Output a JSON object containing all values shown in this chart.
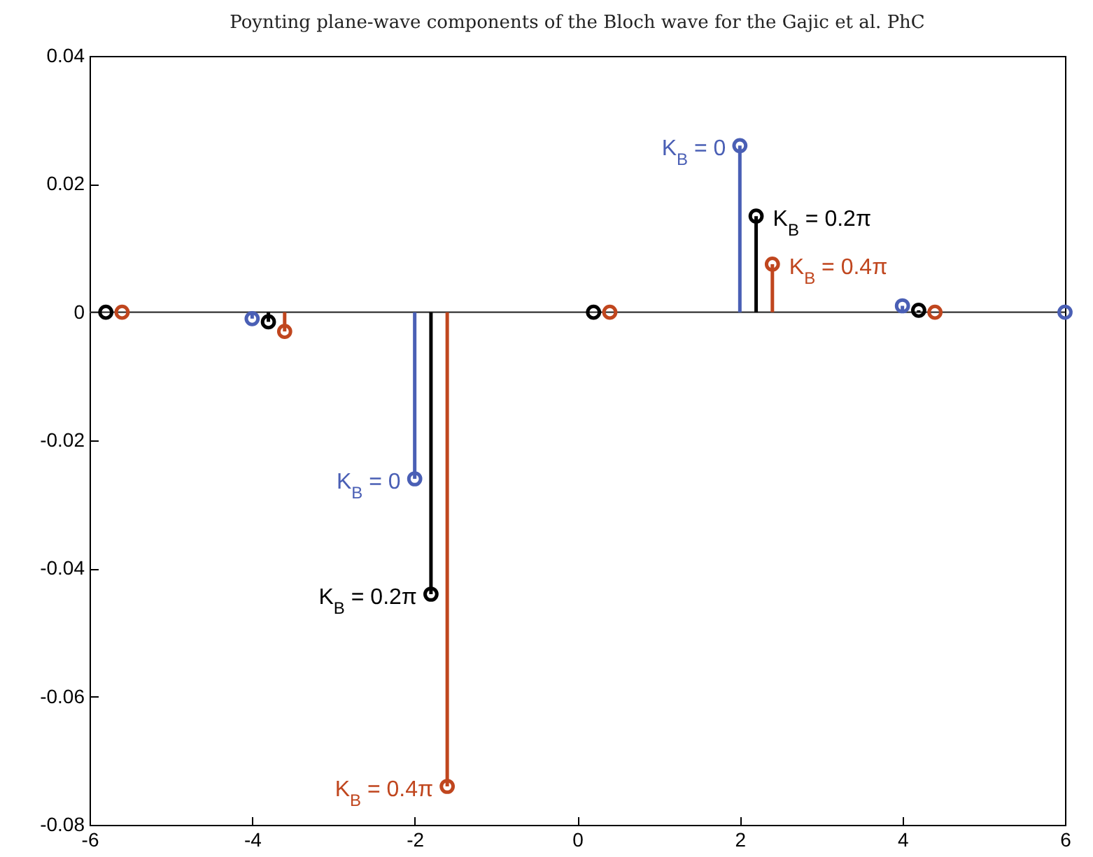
{
  "chart_data": {
    "type": "lollipop",
    "title": "Poynting plane-wave components of the Bloch wave for the Gajic et al. PhC",
    "series": [
      {
        "color": "#4a5fb5",
        "x": [
          -4,
          -2,
          2,
          4,
          6
        ],
        "values": [
          -0.001,
          -0.026,
          0.026,
          0.001,
          0
        ]
      },
      {
        "color": "#000000",
        "x": [
          -5.8,
          -3.8,
          -1.8,
          0.2,
          2.2,
          4.2
        ],
        "values": [
          0,
          -0.0015,
          -0.044,
          0,
          0.015,
          0.0003
        ]
      },
      {
        "color": "#c0461e",
        "x": [
          -5.6,
          -3.6,
          -1.6,
          0.4,
          2.4,
          4.4
        ],
        "values": [
          0,
          -0.003,
          -0.074,
          0,
          0.0075,
          0
        ]
      }
    ],
    "xlim": [
      -6,
      6
    ],
    "xticks": [
      -6,
      -4,
      -2,
      0,
      2,
      4,
      6
    ],
    "ylim": [
      -0.08,
      0.04
    ],
    "yticks": [
      -0.08,
      -0.06,
      -0.04,
      -0.02,
      0,
      0.02,
      0.04
    ],
    "ref_lines": [
      {
        "axis": "y",
        "value": 0,
        "color": "#333333"
      }
    ],
    "annotations": [
      {
        "text": "K$_{B}$ = 0",
        "x": -2,
        "y": -0.026
      },
      {
        "text": "K$_{B}$ = 0.2π",
        "x": -1.8,
        "y": -0.044
      },
      {
        "text": "K$_{B}$ = 0.4π",
        "x": -1.6,
        "y": -0.074
      },
      {
        "text": "K$_{B}$ = 0",
        "x": 2,
        "y": 0.026
      },
      {
        "text": "K$_{B}$ = 0.2π",
        "x": 2.2,
        "y": 0.015
      },
      {
        "text": "K$_{B}$ = 0.4π",
        "x": 2.4,
        "y": 0.0075
      }
    ],
    "marker": "circle",
    "grid": false
  }
}
